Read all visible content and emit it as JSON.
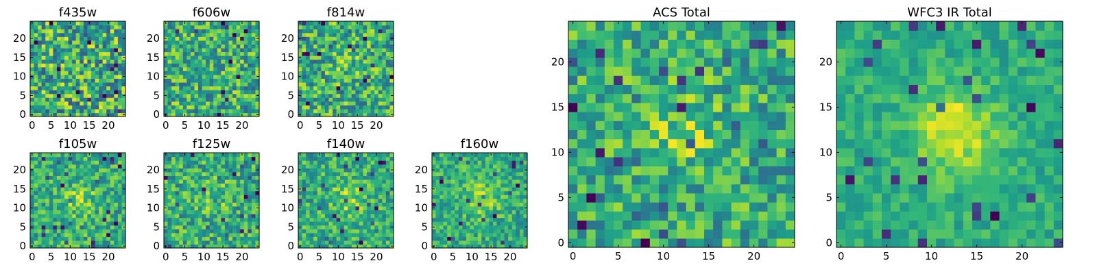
{
  "figure": {
    "description_type": "image-grid"
  },
  "chart_data": [
    {
      "type": "heatmap",
      "title": "f435w",
      "grid_size": 25,
      "xticks": [
        0,
        5,
        10,
        15,
        20
      ],
      "yticks": [
        0,
        5,
        10,
        15,
        20
      ],
      "peak_strength": 0.0,
      "noise": 0.7,
      "colormap": "viridis"
    },
    {
      "type": "heatmap",
      "title": "f606w",
      "grid_size": 25,
      "xticks": [
        0,
        5,
        10,
        15,
        20
      ],
      "yticks": [
        0,
        5,
        10,
        15,
        20
      ],
      "peak_strength": 0.1,
      "noise": 0.6,
      "colormap": "viridis"
    },
    {
      "type": "heatmap",
      "title": "f814w",
      "grid_size": 25,
      "xticks": [
        0,
        5,
        10,
        15,
        20
      ],
      "yticks": [
        0,
        5,
        10,
        15,
        20
      ],
      "peak_strength": 0.15,
      "noise": 0.6,
      "colormap": "viridis"
    },
    {
      "type": "heatmap",
      "title": "f105w",
      "grid_size": 25,
      "xticks": [
        0,
        5,
        10,
        15,
        20
      ],
      "yticks": [
        0,
        5,
        10,
        15,
        20
      ],
      "peak_strength": 0.35,
      "noise": 0.45,
      "colormap": "viridis"
    },
    {
      "type": "heatmap",
      "title": "f125w",
      "grid_size": 25,
      "xticks": [
        0,
        5,
        10,
        15,
        20
      ],
      "yticks": [
        0,
        5,
        10,
        15,
        20
      ],
      "peak_strength": 0.25,
      "noise": 0.5,
      "colormap": "viridis"
    },
    {
      "type": "heatmap",
      "title": "f140w",
      "grid_size": 25,
      "xticks": [
        0,
        5,
        10,
        15,
        20
      ],
      "yticks": [
        0,
        5,
        10,
        15,
        20
      ],
      "peak_strength": 0.35,
      "noise": 0.45,
      "colormap": "viridis"
    },
    {
      "type": "heatmap",
      "title": "f160w",
      "grid_size": 25,
      "xticks": [
        0,
        5,
        10,
        15,
        20
      ],
      "yticks": [
        0,
        5,
        10,
        15,
        20
      ],
      "peak_strength": 0.45,
      "noise": 0.4,
      "colormap": "viridis"
    },
    {
      "type": "heatmap",
      "title": "ACS Total",
      "grid_size": 25,
      "xticks": [
        0,
        5,
        10,
        15,
        20
      ],
      "yticks": [
        0,
        5,
        10,
        15,
        20
      ],
      "peak_strength": 0.3,
      "noise": 0.5,
      "colormap": "viridis"
    },
    {
      "type": "heatmap",
      "title": "WFC3 IR Total",
      "grid_size": 25,
      "xticks": [
        0,
        5,
        10,
        15,
        20
      ],
      "yticks": [
        0,
        5,
        10,
        15,
        20
      ],
      "peak_strength": 0.65,
      "noise": 0.25,
      "colormap": "viridis"
    }
  ]
}
